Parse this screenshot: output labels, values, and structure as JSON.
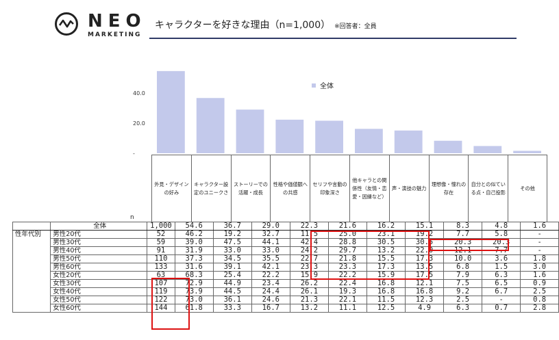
{
  "logo": {
    "brand": "NEO",
    "sub": "MARKETING"
  },
  "title": {
    "main": "キャラクターを好きな理由（n=1,000）",
    "note": "※回答者：全員"
  },
  "chart_data": {
    "type": "bar",
    "legend": "全体",
    "ylim": [
      0,
      55
    ],
    "yticks": [
      "40.0",
      "20.0",
      "-"
    ],
    "categories": [
      "外見・デザインの好み",
      "キャラクター設定のユニークさ",
      "ストーリーでの活躍・成長",
      "性格や価値観への共感",
      "セリフや言動の印象深さ",
      "他キャラとの関係性（友情・恋愛・因縁など）",
      "声・演技の魅力",
      "理想像・憧れの存在",
      "自分との似ている点・自己投影",
      "その他"
    ],
    "values": [
      54.6,
      36.7,
      29.0,
      22.3,
      21.6,
      16.2,
      15.1,
      8.3,
      4.8,
      1.6
    ],
    "bar_color": "#c3c9eb"
  },
  "table": {
    "n_header": "n",
    "group_label": "性年代別",
    "total": {
      "label": "全体",
      "n": "1,000",
      "values": [
        "54.6",
        "36.7",
        "29.0",
        "22.3",
        "21.6",
        "16.2",
        "15.1",
        "8.3",
        "4.8",
        "1.6"
      ]
    },
    "rows": [
      {
        "label": "男性20代",
        "n": "52",
        "values": [
          "46.2",
          "19.2",
          "32.7",
          "11.5",
          "25.0",
          "23.1",
          "19.2",
          "7.7",
          "5.8",
          "-"
        ]
      },
      {
        "label": "男性30代",
        "n": "59",
        "values": [
          "39.0",
          "47.5",
          "44.1",
          "42.4",
          "28.8",
          "30.5",
          "30.5",
          "20.3",
          "20.3",
          "-"
        ]
      },
      {
        "label": "男性40代",
        "n": "91",
        "values": [
          "31.9",
          "33.0",
          "33.0",
          "24.2",
          "29.7",
          "13.2",
          "22.0",
          "12.1",
          "7.7",
          "-"
        ]
      },
      {
        "label": "男性50代",
        "n": "110",
        "values": [
          "37.3",
          "34.5",
          "35.5",
          "22.7",
          "21.8",
          "15.5",
          "17.3",
          "10.0",
          "3.6",
          "1.8"
        ]
      },
      {
        "label": "男性60代",
        "n": "133",
        "values": [
          "31.6",
          "39.1",
          "42.1",
          "23.3",
          "23.3",
          "17.3",
          "13.5",
          "6.8",
          "1.5",
          "3.0"
        ]
      },
      {
        "label": "女性20代",
        "n": "63",
        "values": [
          "68.3",
          "25.4",
          "22.2",
          "15.9",
          "22.2",
          "15.9",
          "17.5",
          "7.9",
          "6.3",
          "1.6"
        ]
      },
      {
        "label": "女性30代",
        "n": "107",
        "values": [
          "72.9",
          "44.9",
          "23.4",
          "26.2",
          "22.4",
          "16.8",
          "12.1",
          "7.5",
          "6.5",
          "0.9"
        ]
      },
      {
        "label": "女性40代",
        "n": "119",
        "values": [
          "73.9",
          "44.5",
          "24.4",
          "26.1",
          "19.3",
          "16.8",
          "16.8",
          "9.2",
          "6.7",
          "2.5"
        ]
      },
      {
        "label": "女性50代",
        "n": "122",
        "values": [
          "73.0",
          "36.1",
          "24.6",
          "21.3",
          "22.1",
          "11.5",
          "12.3",
          "2.5",
          "-",
          "0.8"
        ]
      },
      {
        "label": "女性60代",
        "n": "144",
        "values": [
          "61.8",
          "33.3",
          "16.7",
          "13.2",
          "11.1",
          "12.5",
          "4.9",
          "6.3",
          "0.7",
          "2.8"
        ]
      }
    ]
  },
  "highlight_color": "#d11111"
}
